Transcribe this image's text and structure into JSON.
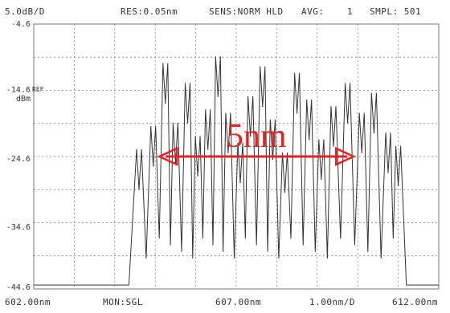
{
  "header": {
    "scale": "5.0dB/D",
    "resolution": "RES:0.05nm",
    "sensitivity": "SENS:NORM HLD",
    "average": "AVG:    1",
    "sampling": "SMPL: 501"
  },
  "footer": {
    "start": "602.00nm",
    "monitor": "MON:SGL",
    "center": "607.00nm",
    "span": "1.00nm/D",
    "stop": "612.00nm"
  },
  "reference": {
    "marker": "REF",
    "unit": "dBm"
  },
  "annotation": {
    "text": "5nm",
    "arrow_from_nm": 605.1,
    "arrow_to_nm": 609.9,
    "color": "#e32222"
  },
  "colors": {
    "grid": "#777777",
    "trace": "#333333"
  },
  "chart_data": {
    "type": "line",
    "title": "",
    "xlabel": "",
    "ylabel": "",
    "xlim": [
      602.0,
      612.0
    ],
    "ylim": [
      -44.6,
      -4.6
    ],
    "ytick_labels": [
      "-4.6",
      "-14.6",
      "-24.6",
      "-34.6",
      "-44.6"
    ],
    "ytick_values": [
      -4.6,
      -14.6,
      -24.6,
      -34.6,
      -44.6
    ],
    "grid": true,
    "peaks": [
      {
        "x": 604.6,
        "y": -29.5
      },
      {
        "x": 604.95,
        "y": -26.0
      },
      {
        "x": 605.25,
        "y": -16.5
      },
      {
        "x": 605.5,
        "y": -25.5
      },
      {
        "x": 605.8,
        "y": -19.5
      },
      {
        "x": 606.05,
        "y": -27.5
      },
      {
        "x": 606.3,
        "y": -23.5
      },
      {
        "x": 606.55,
        "y": -15.5
      },
      {
        "x": 606.8,
        "y": -24.0
      },
      {
        "x": 607.1,
        "y": -28.5
      },
      {
        "x": 607.35,
        "y": -21.5
      },
      {
        "x": 607.65,
        "y": -17.0
      },
      {
        "x": 607.9,
        "y": -25.0
      },
      {
        "x": 608.2,
        "y": -30.0
      },
      {
        "x": 608.5,
        "y": -18.0
      },
      {
        "x": 608.8,
        "y": -22.0
      },
      {
        "x": 609.1,
        "y": -28.0
      },
      {
        "x": 609.4,
        "y": -23.0
      },
      {
        "x": 609.75,
        "y": -19.5
      },
      {
        "x": 610.1,
        "y": -24.0
      },
      {
        "x": 610.4,
        "y": -21.0
      },
      {
        "x": 610.75,
        "y": -27.0
      },
      {
        "x": 611.0,
        "y": -29.0
      }
    ],
    "noise_floor": -44.0
  }
}
